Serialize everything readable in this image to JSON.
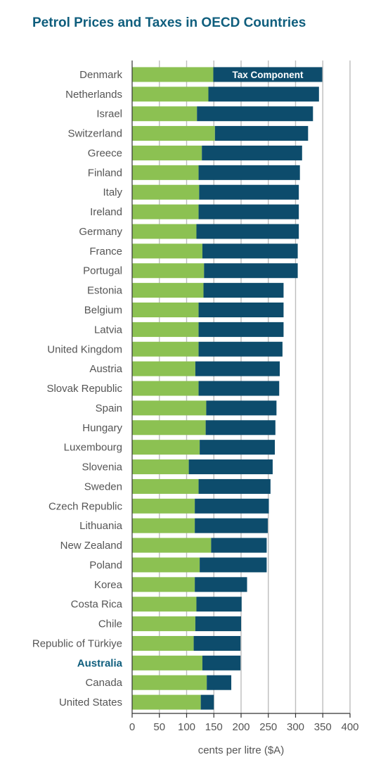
{
  "title": "Petrol Prices and Taxes in OECD Countries",
  "colors": {
    "base": "#8cc152",
    "tax": "#0d4c6c",
    "grid": "#bdbdbd",
    "axis": "#555555",
    "highlight": "#0f5e7d"
  },
  "chart_data": {
    "type": "bar",
    "orientation": "horizontal",
    "stacked": true,
    "title": "Petrol Prices and Taxes in OECD Countries",
    "xlabel": "cents per litre ($A)",
    "ylabel": "",
    "xlim": [
      0,
      400
    ],
    "xticks": [
      0,
      50,
      100,
      150,
      200,
      250,
      300,
      350,
      400
    ],
    "grid": "vertical",
    "highlight_category": "Australia",
    "categories": [
      "Denmark",
      "Netherlands",
      "Israel",
      "Switzerland",
      "Greece",
      "Finland",
      "Italy",
      "Ireland",
      "Germany",
      "France",
      "Portugal",
      "Estonia",
      "Belgium",
      "Latvia",
      "United Kingdom",
      "Austria",
      "Slovak Republic",
      "Spain",
      "Hungary",
      "Luxembourg",
      "Slovenia",
      "Sweden",
      "Czech Republic",
      "Lithuania",
      "New Zealand",
      "Poland",
      "Korea",
      "Costa Rica",
      "Chile",
      "Republic of Türkiye",
      "Australia",
      "Canada",
      "United States"
    ],
    "series": [
      {
        "values": [
          149,
          140,
          119,
          152,
          128,
          122,
          123,
          122,
          118,
          129,
          132,
          131,
          122,
          122,
          122,
          116,
          122,
          136,
          135,
          124,
          104,
          122,
          115,
          115,
          145,
          124,
          115,
          118,
          116,
          113,
          129,
          137,
          126
        ]
      },
      {
        "name": "Tax Component",
        "values": [
          200,
          203,
          213,
          171,
          184,
          186,
          183,
          184,
          188,
          175,
          172,
          147,
          156,
          156,
          154,
          155,
          148,
          129,
          128,
          138,
          154,
          132,
          136,
          134,
          102,
          123,
          96,
          83,
          84,
          86,
          70,
          45,
          24
        ]
      }
    ],
    "annotations": [
      {
        "text": "Tax Component",
        "category": "Denmark",
        "series": "Tax Component"
      }
    ]
  }
}
